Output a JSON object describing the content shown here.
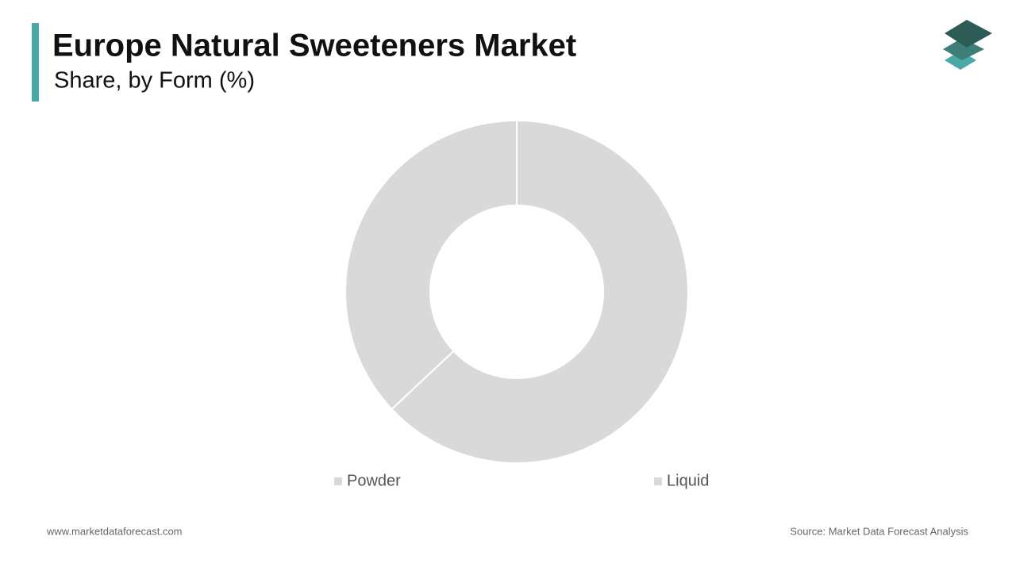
{
  "chart_data": {
    "type": "donut",
    "title": "Europe Natural Sweeteners Market",
    "subtitle": "Share, by Form (%)",
    "categories": [
      "Powder",
      "Liquid"
    ],
    "values": [
      63,
      37
    ],
    "colors": [
      "#d9d9d9",
      "#d9d9d9"
    ],
    "website": "www.marketdataforecast.com",
    "source": "Source: Market Data Forecast Analysis"
  }
}
